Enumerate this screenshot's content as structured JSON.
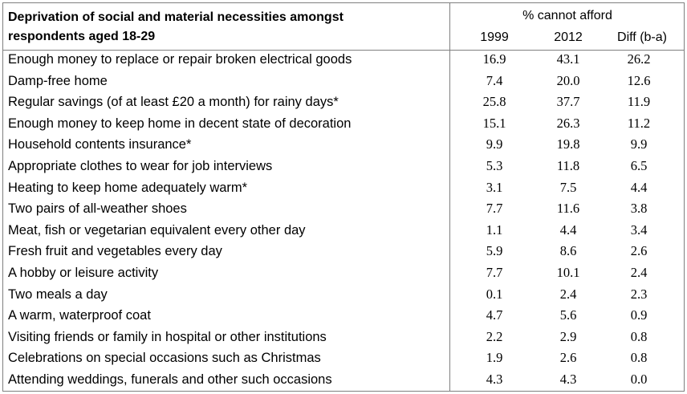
{
  "table": {
    "title_line1": "Deprivation of social and material necessities amongst",
    "title_line2": "respondents aged 18-29",
    "group_header": "% cannot afford",
    "col_1999": "1999",
    "col_2012": "2012",
    "col_diff": "Diff (b-a)",
    "rows": [
      {
        "label": "Enough money to replace or repair broken electrical goods",
        "v1999": "16.9",
        "v2012": "43.1",
        "diff": "26.2"
      },
      {
        "label": "Damp-free home",
        "v1999": "7.4",
        "v2012": "20.0",
        "diff": "12.6"
      },
      {
        "label": "Regular savings (of at least £20 a month) for rainy days*",
        "v1999": "25.8",
        "v2012": "37.7",
        "diff": "11.9"
      },
      {
        "label": "Enough money to keep home in decent state of decoration",
        "v1999": "15.1",
        "v2012": "26.3",
        "diff": "11.2"
      },
      {
        "label": "Household contents insurance*",
        "v1999": "9.9",
        "v2012": "19.8",
        "diff": "9.9"
      },
      {
        "label": "Appropriate clothes to wear for job interviews",
        "v1999": "5.3",
        "v2012": "11.8",
        "diff": "6.5"
      },
      {
        "label": "Heating to keep home adequately warm*",
        "v1999": "3.1",
        "v2012": "7.5",
        "diff": "4.4"
      },
      {
        "label": "Two pairs of all-weather shoes",
        "v1999": "7.7",
        "v2012": "11.6",
        "diff": "3.8"
      },
      {
        "label": "Meat, fish or vegetarian equivalent every other day",
        "v1999": "1.1",
        "v2012": "4.4",
        "diff": "3.4"
      },
      {
        "label": "Fresh fruit and vegetables every day",
        "v1999": "5.9",
        "v2012": "8.6",
        "diff": "2.6"
      },
      {
        "label": "A hobby or leisure activity",
        "v1999": "7.7",
        "v2012": "10.1",
        "diff": "2.4"
      },
      {
        "label": "Two meals a day",
        "v1999": "0.1",
        "v2012": "2.4",
        "diff": "2.3"
      },
      {
        "label": "A warm, waterproof coat",
        "v1999": "4.7",
        "v2012": "5.6",
        "diff": "0.9"
      },
      {
        "label": "Visiting friends or family in hospital or other institutions",
        "v1999": "2.2",
        "v2012": "2.9",
        "diff": "0.8"
      },
      {
        "label": "Celebrations on special occasions such as Christmas",
        "v1999": "1.9",
        "v2012": "2.6",
        "diff": "0.8"
      },
      {
        "label": "Attending weddings, funerals and other such occasions",
        "v1999": "4.3",
        "v2012": "4.3",
        "diff": "0.0"
      }
    ]
  }
}
